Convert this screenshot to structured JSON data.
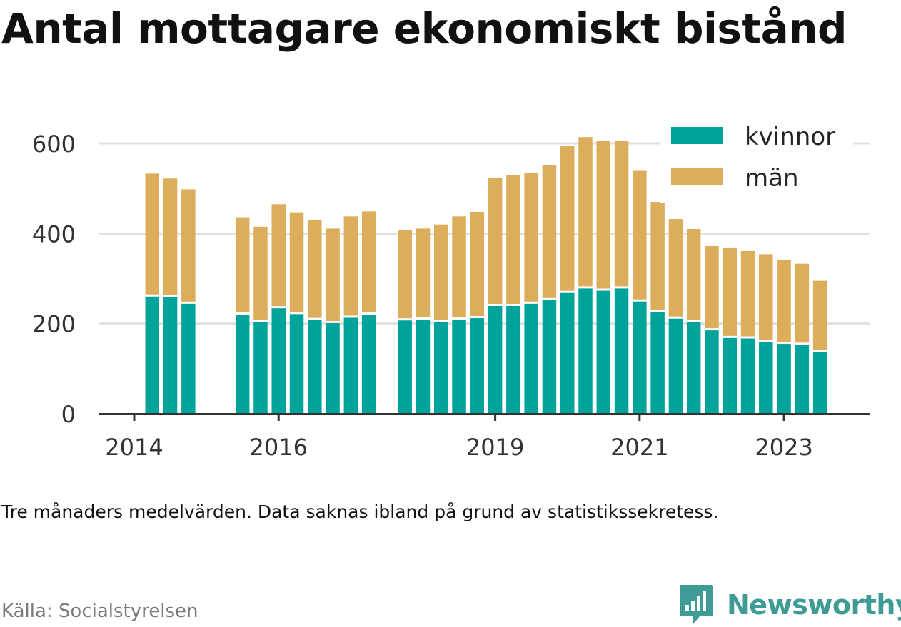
{
  "title": "Antal mottagare ekonomiskt bistånd",
  "note": "Tre månaders medelvärden. Data saknas ibland på grund av statistikssekretess.",
  "source": "Källa: Socialstyrelsen",
  "brand": "Newsworthy",
  "colors": {
    "kvinnor": "#00a39a",
    "man": "#dcae5c",
    "grid": "#e0e0e0",
    "axis": "#333333",
    "brand": "#3f9b96"
  },
  "chart_data": {
    "type": "bar",
    "stacked": true,
    "title": "Antal mottagare ekonomiskt bistånd",
    "xlabel": "",
    "ylabel": "",
    "ylim": [
      0,
      650
    ],
    "yticks": [
      0,
      200,
      400,
      600
    ],
    "xtick_labels": [
      {
        "label": "2014",
        "quarter": 0
      },
      {
        "label": "2016",
        "quarter": 8
      },
      {
        "label": "2019",
        "quarter": 20
      },
      {
        "label": "2021",
        "quarter": 28
      },
      {
        "label": "2023",
        "quarter": 36
      }
    ],
    "legend": {
      "position": "top-right",
      "entries": [
        "kvinnor",
        "män"
      ]
    },
    "grid": true,
    "quarters": [
      1,
      2,
      3,
      6,
      7,
      8,
      9,
      10,
      11,
      12,
      13,
      15,
      16,
      17,
      18,
      19,
      20,
      21,
      22,
      23,
      24,
      25,
      26,
      27,
      28,
      29,
      30,
      31,
      32,
      33,
      34,
      35,
      36,
      37,
      38
    ],
    "series": [
      {
        "name": "kvinnor",
        "values": [
          260,
          259,
          244,
          220,
          204,
          234,
          221,
          208,
          201,
          213,
          220,
          207,
          209,
          204,
          209,
          212,
          239,
          239,
          244,
          252,
          268,
          278,
          273,
          278,
          249,
          226,
          211,
          204,
          185,
          168,
          167,
          159,
          155,
          153,
          137
        ]
      },
      {
        "name": "män",
        "values": [
          273,
          263,
          254,
          216,
          211,
          231,
          226,
          221,
          210,
          225,
          229,
          201,
          202,
          216,
          229,
          236,
          284,
          291,
          290,
          300,
          327,
          336,
          332,
          327,
          290,
          244,
          221,
          206,
          187,
          201,
          194,
          195,
          186,
          180,
          158
        ]
      }
    ]
  }
}
